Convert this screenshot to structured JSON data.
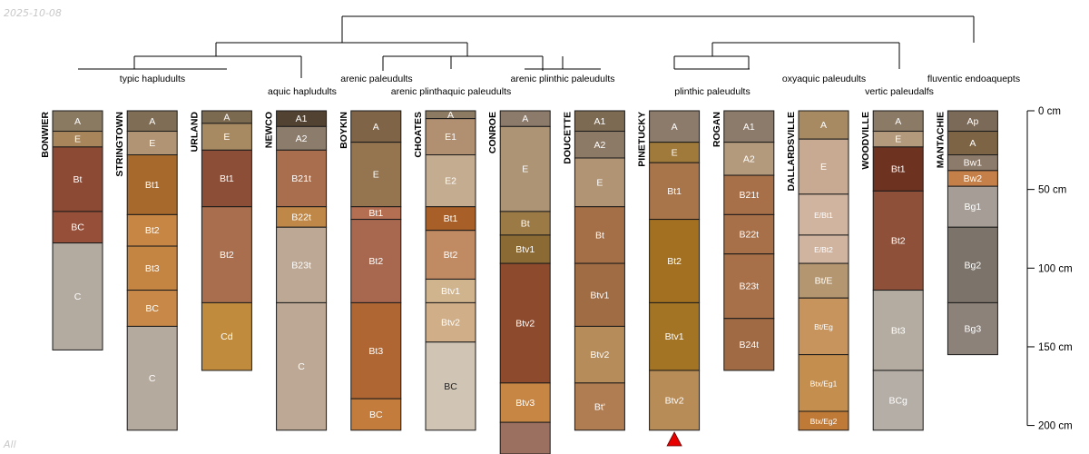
{
  "header_date": "2025-10-08",
  "footer_text": "All",
  "chart_data": {
    "type": "soil_profile_sketch",
    "depth_units": "cm",
    "depth_axis": {
      "ticks": [
        0,
        50,
        100,
        150,
        200
      ],
      "suffix": " cm",
      "range": [
        0,
        200
      ]
    },
    "dendrogram_labels": [
      {
        "text": "typic hapludults"
      },
      {
        "text": "aquic hapludults"
      },
      {
        "text": "arenic paleudults"
      },
      {
        "text": "arenic plinthaquic paleudults"
      },
      {
        "text": "arenic plinthic paleudults"
      },
      {
        "text": "plinthic paleudults"
      },
      {
        "text": "oxyaquic paleudults"
      },
      {
        "text": "vertic paleudalfs"
      },
      {
        "text": "fluventic endoaquepts"
      }
    ],
    "profiles": [
      {
        "name": "BONWIER",
        "horizons": [
          {
            "label": "A",
            "top": 0,
            "bottom": 13,
            "color": "#8a7a62"
          },
          {
            "label": "E",
            "top": 13,
            "bottom": 23,
            "color": "#a8855a"
          },
          {
            "label": "Bt",
            "top": 23,
            "bottom": 64,
            "color": "#8c4a34"
          },
          {
            "label": "BC",
            "top": 64,
            "bottom": 84,
            "color": "#96503a"
          },
          {
            "label": "C",
            "top": 84,
            "bottom": 152,
            "color": "#b3aaa0"
          }
        ]
      },
      {
        "name": "STRINGTOWN",
        "horizons": [
          {
            "label": "A",
            "top": 0,
            "bottom": 13,
            "color": "#7f6e55"
          },
          {
            "label": "E",
            "top": 13,
            "bottom": 28,
            "color": "#b09473"
          },
          {
            "label": "Bt1",
            "top": 28,
            "bottom": 66,
            "color": "#a86a2c"
          },
          {
            "label": "Bt2",
            "top": 66,
            "bottom": 86,
            "color": "#c88645"
          },
          {
            "label": "Bt3",
            "top": 86,
            "bottom": 114,
            "color": "#c48442"
          },
          {
            "label": "BC",
            "top": 114,
            "bottom": 137,
            "color": "#c88848"
          },
          {
            "label": "C",
            "top": 137,
            "bottom": 203,
            "color": "#b5aa9e"
          }
        ]
      },
      {
        "name": "URLAND",
        "horizons": [
          {
            "label": "A",
            "top": 0,
            "bottom": 8,
            "color": "#7c6a50"
          },
          {
            "label": "E",
            "top": 8,
            "bottom": 25,
            "color": "#a88a62"
          },
          {
            "label": "Bt1",
            "top": 25,
            "bottom": 61,
            "color": "#8c4e36"
          },
          {
            "label": "Bt2",
            "top": 61,
            "bottom": 122,
            "color": "#a86e4e"
          },
          {
            "label": "Cd",
            "top": 122,
            "bottom": 165,
            "color": "#c08b3c"
          }
        ]
      },
      {
        "name": "NEWCO",
        "horizons": [
          {
            "label": "A1",
            "top": 0,
            "bottom": 10,
            "color": "#524232"
          },
          {
            "label": "A2",
            "top": 10,
            "bottom": 25,
            "color": "#8c7c6c"
          },
          {
            "label": "B21t",
            "top": 25,
            "bottom": 61,
            "color": "#a86e4e"
          },
          {
            "label": "B22t",
            "top": 61,
            "bottom": 74,
            "color": "#c08848"
          },
          {
            "label": "B23t",
            "top": 74,
            "bottom": 122,
            "color": "#bca894"
          },
          {
            "label": "C",
            "top": 122,
            "bottom": 203,
            "color": "#bca894"
          }
        ]
      },
      {
        "name": "BOYKIN",
        "horizons": [
          {
            "label": "A",
            "top": 0,
            "bottom": 20,
            "color": "#7f6448"
          },
          {
            "label": "E",
            "top": 20,
            "bottom": 61,
            "color": "#957550"
          },
          {
            "label": "Bt1",
            "top": 61,
            "bottom": 69,
            "color": "#b46e52"
          },
          {
            "label": "Bt2",
            "top": 69,
            "bottom": 122,
            "color": "#a86850"
          },
          {
            "label": "Bt3",
            "top": 122,
            "bottom": 183,
            "color": "#b06632"
          },
          {
            "label": "BC",
            "top": 183,
            "bottom": 203,
            "color": "#c47c3c"
          }
        ]
      },
      {
        "name": "CHOATES",
        "horizons": [
          {
            "label": "A",
            "top": 0,
            "bottom": 5,
            "color": "#8c7a62"
          },
          {
            "label": "E1",
            "top": 5,
            "bottom": 28,
            "color": "#b09070"
          },
          {
            "label": "E2",
            "top": 28,
            "bottom": 61,
            "color": "#c4ac90"
          },
          {
            "label": "Bt1",
            "top": 61,
            "bottom": 76,
            "color": "#a86028"
          },
          {
            "label": "Bt2",
            "top": 76,
            "bottom": 107,
            "color": "#c08a62"
          },
          {
            "label": "Btv1",
            "top": 107,
            "bottom": 122,
            "color": "#d0b48e"
          },
          {
            "label": "Btv2",
            "top": 122,
            "bottom": 147,
            "color": "#cfae88"
          },
          {
            "label": "BC",
            "top": 147,
            "bottom": 203,
            "color": "#d0c4b4"
          }
        ]
      },
      {
        "name": "CONROE",
        "horizons": [
          {
            "label": "A",
            "top": 0,
            "bottom": 10,
            "color": "#8c7a6a"
          },
          {
            "label": "E",
            "top": 10,
            "bottom": 64,
            "color": "#ad9474"
          },
          {
            "label": "Bt",
            "top": 64,
            "bottom": 79,
            "color": "#9c7a46"
          },
          {
            "label": "Btv1",
            "top": 79,
            "bottom": 97,
            "color": "#8c6a34"
          },
          {
            "label": "Btv2",
            "top": 97,
            "bottom": 173,
            "color": "#8e4a2c"
          },
          {
            "label": "Btv3",
            "top": 173,
            "bottom": 198,
            "color": "#c88644"
          },
          {
            "label": "",
            "top": 198,
            "bottom": 220,
            "color": "#9c7060"
          }
        ]
      },
      {
        "name": "DOUCETTE",
        "horizons": [
          {
            "label": "A1",
            "top": 0,
            "bottom": 13,
            "color": "#7c6a52"
          },
          {
            "label": "A2",
            "top": 13,
            "bottom": 30,
            "color": "#8c7a66"
          },
          {
            "label": "E",
            "top": 30,
            "bottom": 61,
            "color": "#b09474"
          },
          {
            "label": "Bt",
            "top": 61,
            "bottom": 97,
            "color": "#a46e46"
          },
          {
            "label": "Btv1",
            "top": 97,
            "bottom": 137,
            "color": "#a06c44"
          },
          {
            "label": "Btv2",
            "top": 137,
            "bottom": 173,
            "color": "#b68c5a"
          },
          {
            "label": "Bt'",
            "top": 173,
            "bottom": 203,
            "color": "#b07c52"
          }
        ]
      },
      {
        "name": "PINETUCKY",
        "horizons": [
          {
            "label": "A",
            "top": 0,
            "bottom": 20,
            "color": "#8c7a6a"
          },
          {
            "label": "E",
            "top": 20,
            "bottom": 33,
            "color": "#a07a3a"
          },
          {
            "label": "Bt1",
            "top": 33,
            "bottom": 69,
            "color": "#a8744a"
          },
          {
            "label": "Bt2",
            "top": 69,
            "bottom": 122,
            "color": "#a27020"
          },
          {
            "label": "Btv1",
            "top": 122,
            "bottom": 165,
            "color": "#a37424"
          },
          {
            "label": "Btv2",
            "top": 165,
            "bottom": 203,
            "color": "#b88c56"
          }
        ]
      },
      {
        "name": "ROGAN",
        "horizons": [
          {
            "label": "A1",
            "top": 0,
            "bottom": 20,
            "color": "#8c7a6a"
          },
          {
            "label": "A2",
            "top": 20,
            "bottom": 41,
            "color": "#b49a7c"
          },
          {
            "label": "B21t",
            "top": 41,
            "bottom": 66,
            "color": "#a87048"
          },
          {
            "label": "B22t",
            "top": 66,
            "bottom": 91,
            "color": "#a87048"
          },
          {
            "label": "B23t",
            "top": 91,
            "bottom": 132,
            "color": "#a87048"
          },
          {
            "label": "B24t",
            "top": 132,
            "bottom": 165,
            "color": "#a06a44"
          }
        ]
      },
      {
        "name": "DALLARDSVILLE",
        "horizons": [
          {
            "label": "A",
            "top": 0,
            "bottom": 18,
            "color": "#a88a62"
          },
          {
            "label": "E",
            "top": 18,
            "bottom": 53,
            "color": "#c8aa92"
          },
          {
            "label": "E/Bt1",
            "top": 53,
            "bottom": 79,
            "color": "#d0b4a0"
          },
          {
            "label": "E/Bt2",
            "top": 79,
            "bottom": 97,
            "color": "#d0b4a0"
          },
          {
            "label": "Bt/E",
            "top": 97,
            "bottom": 119,
            "color": "#b49670"
          },
          {
            "label": "Bt/Eg",
            "top": 119,
            "bottom": 155,
            "color": "#c6945c"
          },
          {
            "label": "Btx/Eg1",
            "top": 155,
            "bottom": 191,
            "color": "#c48e4e"
          },
          {
            "label": "Btx/Eg2",
            "top": 191,
            "bottom": 203,
            "color": "#c07a38"
          }
        ]
      },
      {
        "name": "WOODVILLE",
        "horizons": [
          {
            "label": "A",
            "top": 0,
            "bottom": 13,
            "color": "#8a7a66"
          },
          {
            "label": "E",
            "top": 13,
            "bottom": 23,
            "color": "#b49a7c"
          },
          {
            "label": "Bt1",
            "top": 23,
            "bottom": 51,
            "color": "#6e3220"
          },
          {
            "label": "Bt2",
            "top": 51,
            "bottom": 114,
            "color": "#8e5038"
          },
          {
            "label": "Bt3",
            "top": 114,
            "bottom": 165,
            "color": "#b4aca0"
          },
          {
            "label": "BCg",
            "top": 165,
            "bottom": 203,
            "color": "#b4aea6"
          }
        ]
      },
      {
        "name": "MANTACHIE",
        "horizons": [
          {
            "label": "Ap",
            "top": 0,
            "bottom": 13,
            "color": "#7c6a58"
          },
          {
            "label": "A",
            "top": 13,
            "bottom": 28,
            "color": "#7c6444"
          },
          {
            "label": "Bw1",
            "top": 28,
            "bottom": 38,
            "color": "#8c7a6a"
          },
          {
            "label": "Bw2",
            "top": 38,
            "bottom": 48,
            "color": "#c48048"
          },
          {
            "label": "Bg1",
            "top": 48,
            "bottom": 74,
            "color": "#a69e96"
          },
          {
            "label": "Bg2",
            "top": 74,
            "bottom": 122,
            "color": "#7c746a"
          },
          {
            "label": "Bg3",
            "top": 122,
            "bottom": 155,
            "color": "#8c827a"
          }
        ]
      }
    ],
    "markers": [
      {
        "profile": "PINETUCKY",
        "type": "triangle",
        "color": "#e60000"
      }
    ],
    "dendrogram_merges": [
      {
        "a": 0,
        "b": 1
      },
      {
        "a": 2,
        "b": 3
      },
      {
        "a": 4,
        "b": 5
      },
      {
        "a": 6,
        "b": 7
      },
      {
        "a": 8,
        "b": 9
      },
      {
        "a": 10,
        "b": 11
      },
      {
        "a": 12,
        "b": 13
      },
      {
        "a": 14,
        "b": 15
      },
      {
        "a": 16,
        "b": 17
      },
      {
        "a": 18,
        "b": 19
      },
      {
        "a": 20,
        "b": 21
      }
    ]
  }
}
